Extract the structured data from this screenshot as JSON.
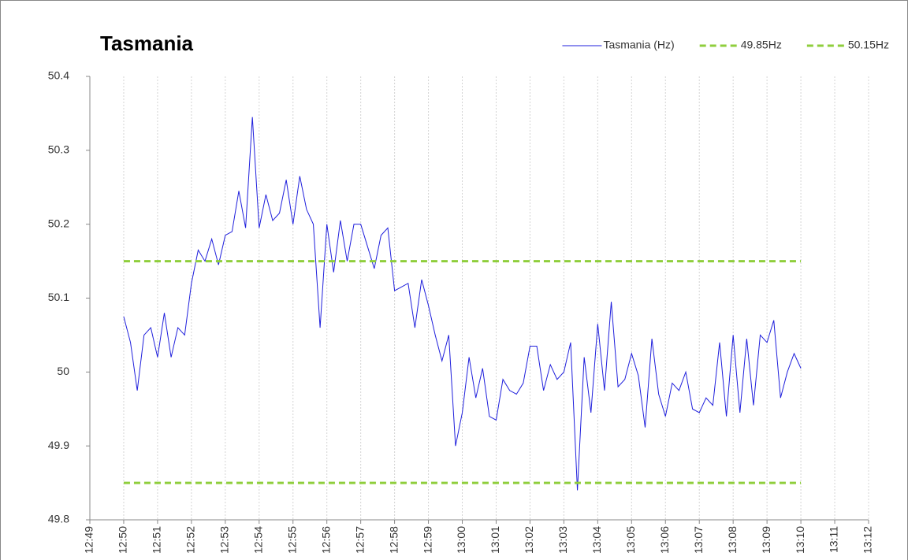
{
  "chart_data": {
    "type": "line",
    "title": "Tasmania",
    "legend": "top-right",
    "grid": true,
    "ylim": [
      49.8,
      50.4
    ],
    "yticks": [
      49.8,
      49.9,
      50,
      50.1,
      50.2,
      50.3,
      50.4
    ],
    "xlim": [
      769,
      792
    ],
    "xticks": [
      {
        "value": 769,
        "label": "12:49"
      },
      {
        "value": 770,
        "label": "12:50"
      },
      {
        "value": 771,
        "label": "12:51"
      },
      {
        "value": 772,
        "label": "12:52"
      },
      {
        "value": 773,
        "label": "12:53"
      },
      {
        "value": 774,
        "label": "12:54"
      },
      {
        "value": 775,
        "label": "12:55"
      },
      {
        "value": 776,
        "label": "12:56"
      },
      {
        "value": 777,
        "label": "12:57"
      },
      {
        "value": 778,
        "label": "12:58"
      },
      {
        "value": 779,
        "label": "12:59"
      },
      {
        "value": 780,
        "label": "13:00"
      },
      {
        "value": 781,
        "label": "13:01"
      },
      {
        "value": 782,
        "label": "13:02"
      },
      {
        "value": 783,
        "label": "13:03"
      },
      {
        "value": 784,
        "label": "13:04"
      },
      {
        "value": 785,
        "label": "13:05"
      },
      {
        "value": 786,
        "label": "13:06"
      },
      {
        "value": 787,
        "label": "13:07"
      },
      {
        "value": 788,
        "label": "13:08"
      },
      {
        "value": 789,
        "label": "13:09"
      },
      {
        "value": 790,
        "label": "13:10"
      },
      {
        "value": 791,
        "label": "13:11"
      },
      {
        "value": 792,
        "label": "13:12"
      }
    ],
    "series": [
      {
        "name": "Tasmania (Hz)",
        "color": "#1f1fdc",
        "dashed": false,
        "x": [
          770,
          770.2,
          770.4,
          770.6,
          770.8,
          771,
          771.2,
          771.4,
          771.6,
          771.8,
          772,
          772.2,
          772.4,
          772.6,
          772.8,
          773,
          773.2,
          773.4,
          773.6,
          773.8,
          774,
          774.2,
          774.4,
          774.6,
          774.8,
          775,
          775.2,
          775.4,
          775.6,
          775.8,
          776,
          776.2,
          776.4,
          776.6,
          776.8,
          777,
          777.2,
          777.4,
          777.6,
          777.8,
          778,
          778.2,
          778.4,
          778.6,
          778.8,
          779,
          779.2,
          779.4,
          779.6,
          779.8,
          780,
          780.2,
          780.4,
          780.6,
          780.8,
          781,
          781.2,
          781.4,
          781.6,
          781.8,
          782,
          782.2,
          782.4,
          782.6,
          782.8,
          783,
          783.2,
          783.4,
          783.6,
          783.8,
          784,
          784.2,
          784.4,
          784.6,
          784.8,
          785,
          785.2,
          785.4,
          785.6,
          785.8,
          786,
          786.2,
          786.4,
          786.6,
          786.8,
          787,
          787.2,
          787.4,
          787.6,
          787.8,
          788,
          788.2,
          788.4,
          788.6,
          788.8,
          789,
          789.2,
          789.4,
          789.6,
          789.8,
          790
        ],
        "values": [
          50.075,
          50.04,
          49.975,
          50.05,
          50.06,
          50.02,
          50.08,
          50.02,
          50.06,
          50.05,
          50.12,
          50.165,
          50.15,
          50.18,
          50.145,
          50.185,
          50.19,
          50.245,
          50.195,
          50.345,
          50.195,
          50.24,
          50.205,
          50.215,
          50.26,
          50.2,
          50.265,
          50.22,
          50.2,
          50.06,
          50.2,
          50.135,
          50.205,
          50.15,
          50.2,
          50.2,
          50.17,
          50.14,
          50.185,
          50.195,
          50.11,
          50.115,
          50.12,
          50.06,
          50.125,
          50.09,
          50.05,
          50.015,
          50.05,
          49.9,
          49.945,
          50.02,
          49.965,
          50.005,
          49.94,
          49.935,
          49.99,
          49.975,
          49.97,
          49.985,
          50.035,
          50.035,
          49.975,
          50.01,
          49.99,
          50,
          50.04,
          49.84,
          50.02,
          49.945,
          50.065,
          49.975,
          50.095,
          49.98,
          49.99,
          50.025,
          49.995,
          49.925,
          50.045,
          49.97,
          49.94,
          49.985,
          49.975,
          50,
          49.95,
          49.945,
          49.965,
          49.955,
          50.04,
          49.94,
          50.05,
          49.945,
          50.045,
          49.955,
          50.05,
          50.04,
          50.07,
          49.965,
          50,
          50.025,
          50.005
        ]
      },
      {
        "name": "49.85Hz",
        "color": "#8fce3c",
        "dashed": true,
        "x": [
          770,
          790
        ],
        "values": [
          49.85,
          49.85
        ]
      },
      {
        "name": "50.15Hz",
        "color": "#8fce3c",
        "dashed": true,
        "x": [
          770,
          790
        ],
        "values": [
          50.15,
          50.15
        ]
      }
    ]
  }
}
